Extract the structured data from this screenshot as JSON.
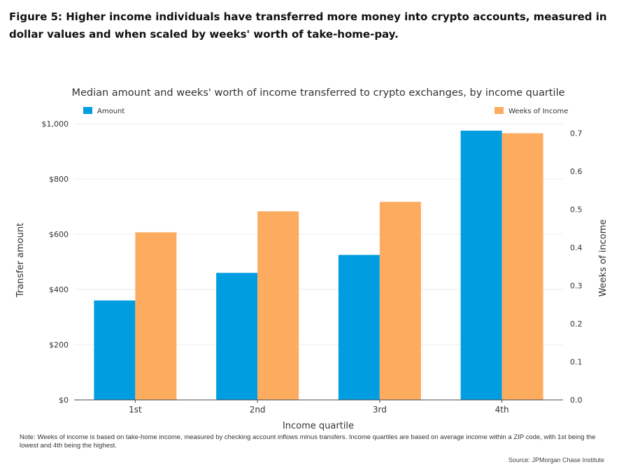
{
  "figure_title": "Figure 5: Higher income individuals have transferred more money into crypto accounts, measured in dollar values and when scaled by weeks' worth of take-home-pay.",
  "note": "Note: Weeks of income is based on take-home income, measured by checking account inflows minus transfers. Income quartiles are based on average income within a ZIP code, with 1st being the lowest and 4th being the highest.",
  "source": "Source: JPMorgan Chase Institute",
  "chart_data": {
    "type": "bar",
    "title": "Median amount and weeks' worth of income transferred to crypto exchanges, by income quartile",
    "xlabel": "Income quartile",
    "ylabel": "Transfer amount",
    "y2label": "Weeks of income",
    "categories": [
      "1st",
      "2nd",
      "3rd",
      "4th"
    ],
    "series": [
      {
        "name": "Amount",
        "axis": "left",
        "color": "#009ee0",
        "values": [
          360,
          460,
          525,
          975
        ]
      },
      {
        "name": "Weeks of Income",
        "axis": "right",
        "color": "#fdac5f",
        "values": [
          0.44,
          0.495,
          0.52,
          0.7
        ]
      }
    ],
    "ylim": [
      0,
      1000
    ],
    "y2lim": [
      0,
      0.725
    ],
    "yticks": [
      0,
      200,
      400,
      600,
      800,
      1000
    ],
    "yticklabels": [
      "$0",
      "$200",
      "$400",
      "$600",
      "$800",
      "$1,000"
    ],
    "y2ticks": [
      0,
      0.1,
      0.2,
      0.3,
      0.4,
      0.5,
      0.6,
      0.7
    ],
    "y2ticklabels": [
      "0.0",
      "0.1",
      "0.2",
      "0.3",
      "0.4",
      "0.5",
      "0.6",
      "0.7"
    ],
    "grid": true,
    "legend": "top"
  }
}
